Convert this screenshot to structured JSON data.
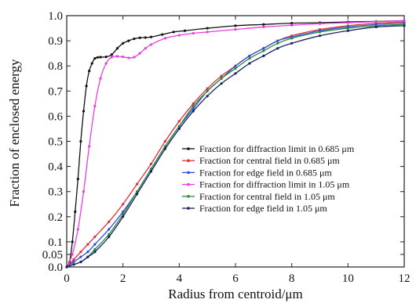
{
  "chart_data": {
    "type": "line",
    "title": "",
    "xlabel": "Radius from centroid/μm",
    "ylabel": "Fraction of enclosed energy",
    "xlim": [
      0,
      12
    ],
    "ylim": [
      0,
      1.0
    ],
    "x_ticks": [
      "0",
      "2",
      "4",
      "6",
      "8",
      "10",
      "12"
    ],
    "y_ticks": [
      "0.0",
      "0.05",
      "0.1",
      "0.2",
      "0.3",
      "0.4",
      "0.5",
      "0.6",
      "0.7",
      "0.8",
      "0.9",
      "1.0"
    ],
    "grid": false,
    "legend_position": "center-right",
    "series": [
      {
        "name": "Fraction for diffraction limit in 0.685 μm",
        "color": "#111111",
        "marker": "dot",
        "x": [
          0,
          0.1,
          0.2,
          0.3,
          0.4,
          0.5,
          0.6,
          0.7,
          0.8,
          0.9,
          1.0,
          1.1,
          1.2,
          1.4,
          1.6,
          1.8,
          2.0,
          2.2,
          2.4,
          2.6,
          2.8,
          3.0,
          3.4,
          3.8,
          4.2,
          5.0,
          6.0,
          7.0,
          8.0,
          9.0,
          10.0,
          11.0,
          12.0
        ],
        "y": [
          0,
          0.02,
          0.1,
          0.22,
          0.35,
          0.5,
          0.62,
          0.72,
          0.78,
          0.81,
          0.83,
          0.834,
          0.835,
          0.836,
          0.845,
          0.87,
          0.89,
          0.9,
          0.908,
          0.912,
          0.913,
          0.915,
          0.925,
          0.935,
          0.94,
          0.95,
          0.96,
          0.965,
          0.97,
          0.972,
          0.975,
          0.977,
          0.98
        ]
      },
      {
        "name": "Fraction for central field in 0.685 μm",
        "color": "#e0303a",
        "marker": "dot",
        "x": [
          0,
          0.25,
          0.5,
          0.75,
          1.0,
          1.5,
          2.0,
          2.5,
          3.0,
          3.5,
          4.0,
          4.5,
          5.0,
          5.5,
          6.0,
          6.5,
          7.0,
          7.5,
          8.0,
          9.0,
          10.0,
          11.0,
          12.0
        ],
        "y": [
          0,
          0.03,
          0.06,
          0.09,
          0.12,
          0.18,
          0.25,
          0.33,
          0.41,
          0.5,
          0.58,
          0.65,
          0.71,
          0.76,
          0.8,
          0.84,
          0.87,
          0.9,
          0.92,
          0.945,
          0.96,
          0.97,
          0.975
        ]
      },
      {
        "name": "Fraction for edge field in 0.685 μm",
        "color": "#2f4fd8",
        "marker": "dot",
        "x": [
          0,
          0.25,
          0.5,
          0.75,
          1.0,
          1.5,
          2.0,
          2.5,
          3.0,
          3.5,
          4.0,
          4.5,
          5.0,
          5.5,
          6.0,
          6.5,
          7.0,
          7.5,
          8.0,
          9.0,
          10.0,
          11.0,
          12.0
        ],
        "y": [
          0,
          0.02,
          0.04,
          0.06,
          0.09,
          0.15,
          0.22,
          0.3,
          0.39,
          0.48,
          0.56,
          0.63,
          0.7,
          0.75,
          0.8,
          0.84,
          0.87,
          0.9,
          0.915,
          0.94,
          0.955,
          0.965,
          0.97
        ]
      },
      {
        "name": "Fraction for diffraction limit in 1.05 μm",
        "color": "#e83ee0",
        "marker": "dot",
        "x": [
          0,
          0.2,
          0.4,
          0.6,
          0.8,
          1.0,
          1.2,
          1.4,
          1.6,
          1.8,
          2.0,
          2.2,
          2.4,
          2.6,
          2.8,
          3.0,
          3.5,
          4.0,
          4.5,
          5.0,
          6.0,
          7.0,
          8.0,
          9.0,
          10.0,
          11.0,
          12.0
        ],
        "y": [
          0,
          0.05,
          0.15,
          0.3,
          0.48,
          0.64,
          0.75,
          0.81,
          0.835,
          0.838,
          0.836,
          0.832,
          0.835,
          0.85,
          0.87,
          0.885,
          0.91,
          0.922,
          0.93,
          0.935,
          0.945,
          0.955,
          0.962,
          0.968,
          0.972,
          0.976,
          0.98
        ]
      },
      {
        "name": "Fraction for central field in 1.05 μm",
        "color": "#2a8a3a",
        "marker": "dot",
        "x": [
          0,
          0.25,
          0.5,
          0.75,
          1.0,
          1.5,
          2.0,
          2.5,
          3.0,
          3.5,
          4.0,
          4.5,
          5.0,
          5.5,
          6.0,
          6.5,
          7.0,
          7.5,
          8.0,
          9.0,
          10.0,
          11.0,
          12.0
        ],
        "y": [
          0,
          0.01,
          0.02,
          0.04,
          0.07,
          0.13,
          0.21,
          0.3,
          0.39,
          0.48,
          0.56,
          0.64,
          0.7,
          0.75,
          0.79,
          0.83,
          0.86,
          0.89,
          0.91,
          0.935,
          0.95,
          0.96,
          0.965
        ]
      },
      {
        "name": "Fraction for edge field in 1.05 μm",
        "color": "#1a2260",
        "marker": "dot",
        "x": [
          0,
          0.25,
          0.5,
          0.75,
          1.0,
          1.5,
          2.0,
          2.5,
          3.0,
          3.5,
          4.0,
          4.5,
          5.0,
          5.5,
          6.0,
          6.5,
          7.0,
          7.5,
          8.0,
          9.0,
          10.0,
          11.0,
          12.0
        ],
        "y": [
          0,
          0.01,
          0.02,
          0.04,
          0.06,
          0.12,
          0.2,
          0.29,
          0.38,
          0.47,
          0.55,
          0.62,
          0.68,
          0.73,
          0.77,
          0.81,
          0.84,
          0.87,
          0.89,
          0.92,
          0.94,
          0.955,
          0.96
        ]
      }
    ]
  }
}
